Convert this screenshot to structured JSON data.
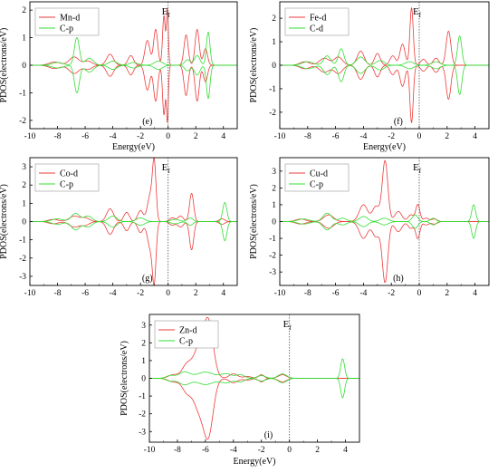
{
  "colors": {
    "d_series": "#ee3b3b",
    "p_series": "#33dd33",
    "axis": "#000000",
    "fermi_line": "#555555"
  },
  "common": {
    "xlabel": "Energy(eV)",
    "ylabel": "PDOS(electrons/eV)",
    "fermi_label": "E",
    "fermi_sub": "f"
  },
  "chart_data": [
    {
      "type": "line",
      "panel": "(e)",
      "xlim": [
        -10,
        5
      ],
      "ylim": [
        -2.3,
        2.3
      ],
      "xticks": [
        -10,
        -8,
        -6,
        -4,
        -2,
        0,
        2,
        4
      ],
      "xtick_labels": [
        "-10",
        "-8",
        "-6",
        "-4",
        "-2",
        "0",
        "2",
        "4"
      ],
      "yticks": [
        -2,
        -1,
        0,
        1,
        2
      ],
      "ytick_labels": [
        "-2",
        "-1",
        "0",
        "1",
        "2"
      ],
      "xlabel": "Energy(eV)",
      "ylabel": "PDOS(electrons/eV)",
      "show_xlabel": true,
      "legend": [
        "Mn-d",
        "C-p"
      ],
      "series": [
        {
          "name": "Mn-d",
          "symmetric": true,
          "peaks": [
            [
              -8.2,
              0.12,
              0.4
            ],
            [
              -6.8,
              0.3,
              0.35
            ],
            [
              -5.8,
              0.15,
              0.3
            ],
            [
              -4.2,
              0.4,
              0.25
            ],
            [
              -2.7,
              0.35,
              0.2
            ],
            [
              -1.5,
              0.9,
              0.18
            ],
            [
              -0.9,
              1.3,
              0.15
            ],
            [
              -0.3,
              1.8,
              0.1
            ],
            [
              -0.05,
              2.0,
              0.07
            ],
            [
              1.3,
              1.1,
              0.15
            ],
            [
              2.1,
              1.3,
              0.15
            ],
            [
              2.7,
              0.6,
              0.15
            ]
          ]
        },
        {
          "name": "C-p",
          "symmetric": true,
          "peaks": [
            [
              -8.0,
              0.1,
              0.4
            ],
            [
              -6.6,
              1.0,
              0.18
            ],
            [
              -5.7,
              0.25,
              0.3
            ],
            [
              -4.0,
              0.15,
              0.3
            ],
            [
              -2.5,
              0.1,
              0.3
            ],
            [
              -0.7,
              0.15,
              0.3
            ],
            [
              1.4,
              0.2,
              0.2
            ],
            [
              2.1,
              0.35,
              0.2
            ],
            [
              2.9,
              1.2,
              0.13
            ]
          ]
        }
      ]
    },
    {
      "type": "line",
      "panel": "(f)",
      "xlim": [
        -10,
        5
      ],
      "ylim": [
        -2.7,
        2.7
      ],
      "xticks": [
        -10,
        -8,
        -6,
        -4,
        -2,
        0,
        2,
        4
      ],
      "xtick_labels": [
        "-10",
        "-8",
        "-6",
        "-4",
        "-2",
        "0",
        "2",
        "4"
      ],
      "yticks": [
        -2,
        -1,
        0,
        1,
        2
      ],
      "ytick_labels": [
        "-2",
        "-1",
        "0",
        "1",
        "2"
      ],
      "xlabel": "Energy(eV)",
      "ylabel": "PDOS(electrons/eV)",
      "show_xlabel": true,
      "legend": [
        "Fe-d",
        "C-d"
      ],
      "series": [
        {
          "name": "Fe-d",
          "symmetric": true,
          "peaks": [
            [
              -8.2,
              0.15,
              0.35
            ],
            [
              -6.8,
              0.3,
              0.35
            ],
            [
              -5.8,
              0.35,
              0.3
            ],
            [
              -4.2,
              0.6,
              0.25
            ],
            [
              -3.0,
              0.5,
              0.2
            ],
            [
              -1.9,
              0.4,
              0.2
            ],
            [
              -1.2,
              0.9,
              0.18
            ],
            [
              -0.55,
              2.45,
              0.12
            ],
            [
              0.3,
              0.25,
              0.2
            ],
            [
              1.2,
              0.3,
              0.2
            ],
            [
              2.1,
              1.45,
              0.17
            ]
          ]
        },
        {
          "name": "C-d",
          "symmetric": true,
          "peaks": [
            [
              -8.0,
              0.15,
              0.4
            ],
            [
              -6.6,
              0.4,
              0.25
            ],
            [
              -5.6,
              0.7,
              0.2
            ],
            [
              -4.2,
              0.35,
              0.3
            ],
            [
              -2.8,
              0.2,
              0.3
            ],
            [
              -0.7,
              0.15,
              0.3
            ],
            [
              1.2,
              0.15,
              0.3
            ],
            [
              2.9,
              1.25,
              0.15
            ]
          ]
        }
      ]
    },
    {
      "type": "line",
      "panel": "(g)",
      "xlim": [
        -10,
        5
      ],
      "ylim": [
        -3.5,
        3.5
      ],
      "xticks": [
        -10,
        -8,
        -6,
        -4,
        -2,
        0,
        2,
        4
      ],
      "xtick_labels": [
        "-10",
        "-8",
        "-6",
        "-4",
        "-2",
        "0",
        "2",
        "4"
      ],
      "yticks": [
        -3,
        -2,
        -1,
        0,
        1,
        2,
        3
      ],
      "ytick_labels": [
        "-3",
        "-2",
        "-1",
        "0",
        "1",
        "2",
        "3"
      ],
      "xlabel": "Energy(eV)",
      "ylabel": "PDOS(electrons/eV)",
      "show_xlabel": false,
      "legend": [
        "Co-d",
        "C-p"
      ],
      "series": [
        {
          "name": "Co-d",
          "symmetric": true,
          "peaks": [
            [
              -8.3,
              0.12,
              0.35
            ],
            [
              -6.8,
              0.3,
              0.35
            ],
            [
              -6.0,
              0.2,
              0.3
            ],
            [
              -4.2,
              0.7,
              0.25
            ],
            [
              -3.0,
              0.5,
              0.2
            ],
            [
              -2.0,
              0.6,
              0.2
            ],
            [
              -1.3,
              1.4,
              0.2
            ],
            [
              -1.0,
              3.0,
              0.13
            ],
            [
              0.3,
              0.2,
              0.2
            ],
            [
              0.9,
              0.3,
              0.2
            ],
            [
              1.7,
              1.55,
              0.15
            ],
            [
              3.9,
              0.15,
              0.2
            ]
          ]
        },
        {
          "name": "C-p",
          "symmetric": true,
          "peaks": [
            [
              -8.0,
              0.15,
              0.4
            ],
            [
              -6.7,
              0.45,
              0.3
            ],
            [
              -5.8,
              0.3,
              0.3
            ],
            [
              -4.0,
              0.3,
              0.3
            ],
            [
              -2.0,
              0.2,
              0.3
            ],
            [
              0.5,
              0.12,
              0.3
            ],
            [
              1.6,
              0.2,
              0.2
            ],
            [
              4.1,
              1.05,
              0.15
            ]
          ]
        }
      ]
    },
    {
      "type": "line",
      "panel": "(h)",
      "xlim": [
        -10,
        5
      ],
      "ylim": [
        -3.8,
        3.8
      ],
      "xticks": [
        -10,
        -8,
        -6,
        -4,
        -2,
        0,
        2,
        4
      ],
      "xtick_labels": [
        "-10",
        "-8",
        "-6",
        "-4",
        "-2",
        "0",
        "2",
        "4"
      ],
      "yticks": [
        -3,
        -2,
        -1,
        0,
        1,
        2,
        3
      ],
      "ytick_labels": [
        "-3",
        "-2",
        "-1",
        "0",
        "1",
        "2",
        "3"
      ],
      "xlabel": "Energy(eV)",
      "ylabel": "PDOS(electrons/eV)",
      "show_xlabel": false,
      "legend": [
        "Cu-d",
        "C-p"
      ],
      "series": [
        {
          "name": "Cu-d",
          "symmetric": true,
          "peaks": [
            [
              -8.5,
              0.15,
              0.35
            ],
            [
              -6.5,
              0.4,
              0.35
            ],
            [
              -4.0,
              1.0,
              0.3
            ],
            [
              -3.1,
              0.9,
              0.25
            ],
            [
              -2.45,
              3.6,
              0.2
            ],
            [
              -1.5,
              0.6,
              0.25
            ],
            [
              -0.6,
              0.4,
              0.2
            ],
            [
              -0.1,
              1.0,
              0.15
            ],
            [
              0.5,
              0.2,
              0.2
            ],
            [
              1.1,
              0.15,
              0.2
            ]
          ]
        },
        {
          "name": "C-p",
          "symmetric": true,
          "peaks": [
            [
              -8.3,
              0.15,
              0.4
            ],
            [
              -6.6,
              0.5,
              0.3
            ],
            [
              -5.5,
              0.2,
              0.3
            ],
            [
              -4.0,
              0.3,
              0.3
            ],
            [
              -2.5,
              0.2,
              0.3
            ],
            [
              -0.3,
              0.4,
              0.2
            ],
            [
              1.0,
              0.2,
              0.2
            ],
            [
              3.9,
              1.0,
              0.14
            ]
          ]
        }
      ]
    },
    {
      "type": "line",
      "panel": "(i)",
      "xlim": [
        -10,
        5
      ],
      "ylim": [
        -3.6,
        3.6
      ],
      "xticks": [
        -10,
        -8,
        -6,
        -4,
        -2,
        0,
        2,
        4
      ],
      "xtick_labels": [
        "-10",
        "-8",
        "-6",
        "-4",
        "-2",
        "0",
        "2",
        "4"
      ],
      "yticks": [
        -3,
        -2,
        -1,
        0,
        1,
        2,
        3
      ],
      "ytick_labels": [
        "-3",
        "-2",
        "-1",
        "0",
        "1",
        "2",
        "3"
      ],
      "xlabel": "Energy(eV)",
      "ylabel": "PDOS(electrons/eV)",
      "show_xlabel": true,
      "legend": [
        "Zn-d",
        "C-p"
      ],
      "series": [
        {
          "name": "Zn-d",
          "symmetric": true,
          "peaks": [
            [
              -8.3,
              0.2,
              0.35
            ],
            [
              -7.3,
              0.8,
              0.35
            ],
            [
              -6.5,
              1.5,
              0.35
            ],
            [
              -5.8,
              3.2,
              0.35
            ],
            [
              -4.0,
              0.25,
              0.3
            ],
            [
              -3.0,
              0.1,
              0.3
            ],
            [
              -2.0,
              0.2,
              0.2
            ],
            [
              -0.5,
              0.2,
              0.3
            ]
          ]
        },
        {
          "name": "C-p",
          "symmetric": true,
          "peaks": [
            [
              -8.5,
              0.15,
              0.3
            ],
            [
              -7.5,
              0.35,
              0.4
            ],
            [
              -6.0,
              0.35,
              0.6
            ],
            [
              -4.5,
              0.25,
              0.4
            ],
            [
              -3.5,
              0.2,
              0.3
            ],
            [
              -2.0,
              0.15,
              0.3
            ],
            [
              -0.5,
              0.25,
              0.3
            ],
            [
              3.8,
              1.1,
              0.14
            ]
          ]
        }
      ]
    }
  ]
}
